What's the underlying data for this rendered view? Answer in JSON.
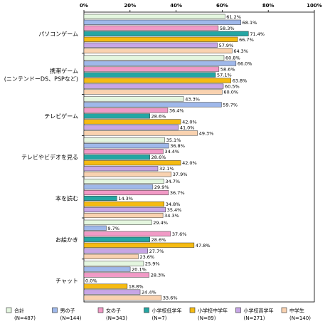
{
  "chart_data": {
    "type": "bar",
    "orientation": "horizontal",
    "xlim": [
      0,
      100
    ],
    "x_ticks": [
      "0%",
      "20%",
      "40%",
      "60%",
      "80%",
      "100%"
    ],
    "categories": [
      {
        "lines": [
          "パソコンゲーム"
        ]
      },
      {
        "lines": [
          "携帯ゲーム",
          "(ニンテンドーDS、PSPなど)"
        ]
      },
      {
        "lines": [
          "テレビゲーム"
        ]
      },
      {
        "lines": [
          "テレビやビデオを見る"
        ]
      },
      {
        "lines": [
          "本を読む"
        ]
      },
      {
        "lines": [
          "お絵かき"
        ]
      },
      {
        "lines": [
          "チャット"
        ]
      }
    ],
    "series": [
      {
        "name": "合計",
        "n": "(N=487)",
        "color": "#e4f6df",
        "values": [
          61.2,
          60.8,
          43.3,
          35.1,
          34.7,
          29.4,
          25.9
        ]
      },
      {
        "name": "男の子",
        "n": "(N=144)",
        "color": "#9fb8ea",
        "values": [
          68.1,
          66.0,
          59.7,
          36.8,
          29.9,
          9.7,
          20.1
        ]
      },
      {
        "name": "女の子",
        "n": "(N=343)",
        "color": "#f19ac6",
        "values": [
          58.3,
          58.6,
          36.4,
          34.4,
          36.7,
          37.6,
          28.3
        ]
      },
      {
        "name": "小学校低学年",
        "n": "(N=7)",
        "color": "#24a6a3",
        "values": [
          71.4,
          57.1,
          28.6,
          28.6,
          14.3,
          28.6,
          0.0
        ]
      },
      {
        "name": "小学校中学年",
        "n": "(N=89)",
        "color": "#f5bb12",
        "values": [
          66.7,
          63.8,
          42.0,
          42.0,
          34.8,
          47.8,
          18.8
        ]
      },
      {
        "name": "小学校高学年",
        "n": "(N=271)",
        "color": "#c7a6e6",
        "values": [
          57.9,
          60.5,
          41.0,
          32.1,
          35.4,
          27.7,
          24.4
        ]
      },
      {
        "name": "中学生",
        "n": "(N=140)",
        "color": "#f9d2b0",
        "values": [
          64.3,
          60.0,
          49.3,
          37.9,
          34.3,
          23.6,
          33.6
        ]
      }
    ],
    "value_label_format": "{v}%",
    "legend_position": "bottom",
    "grid": false
  }
}
